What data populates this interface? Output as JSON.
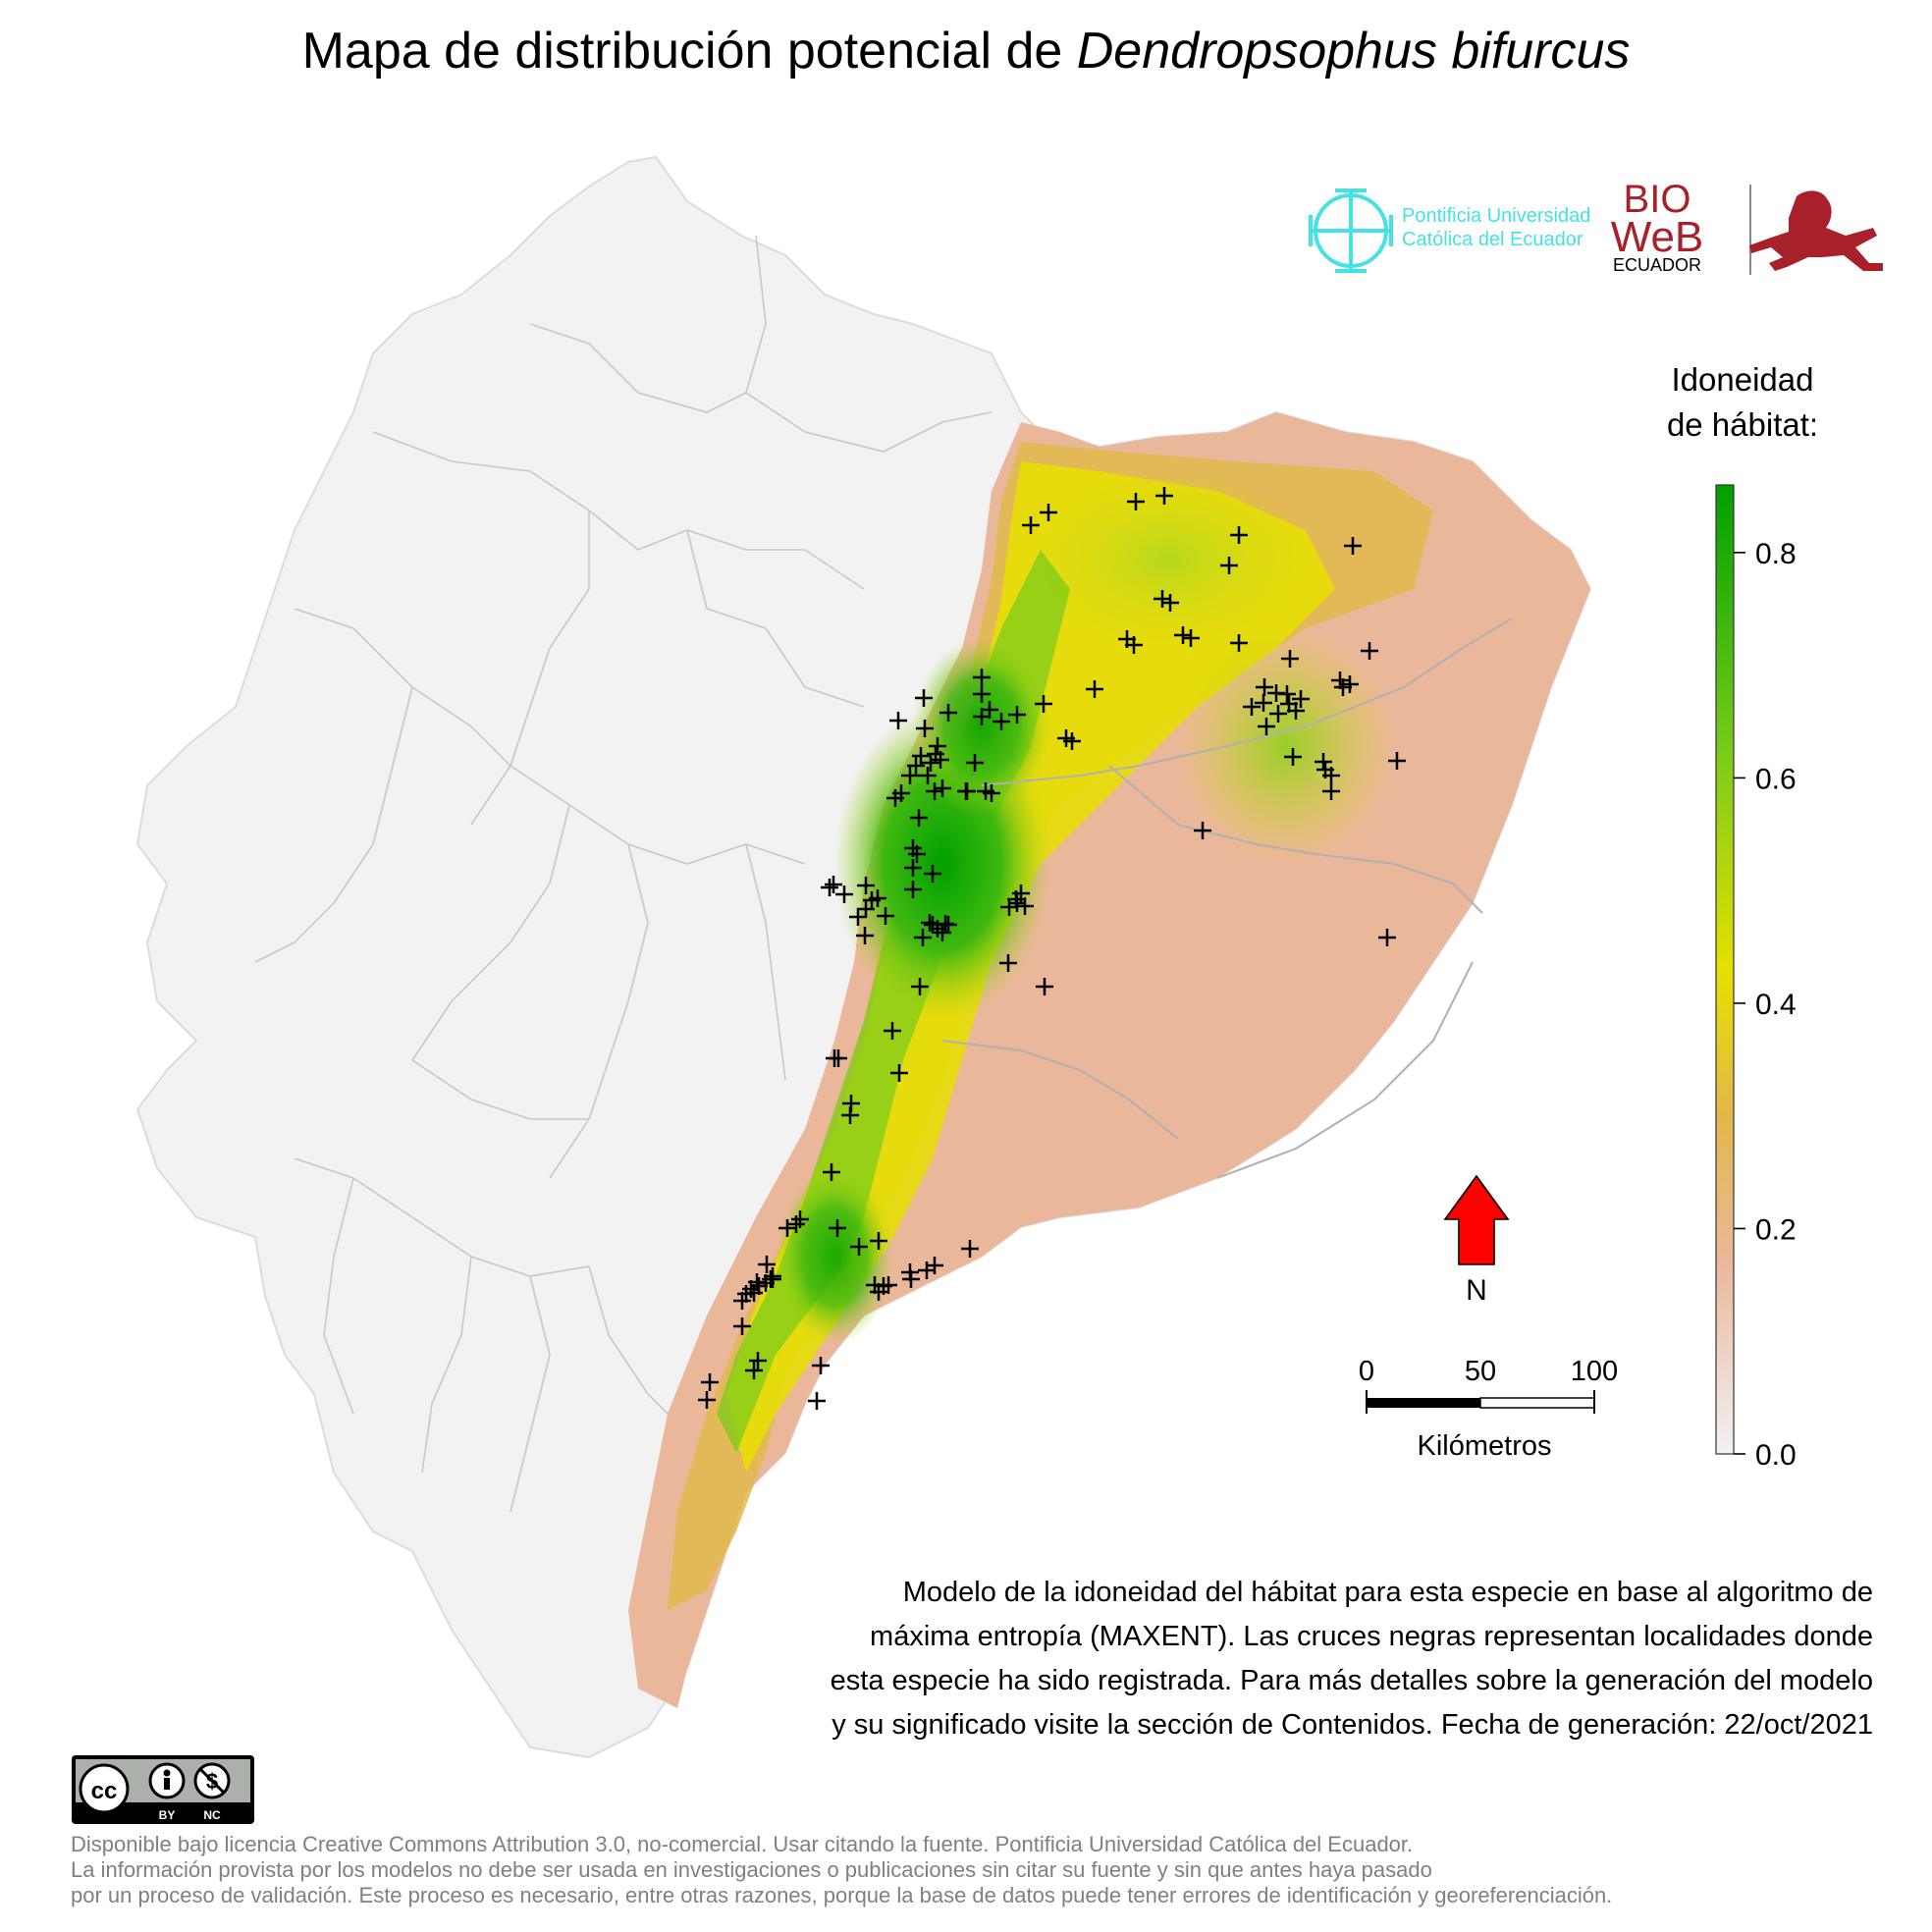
{
  "title": {
    "prefix": "Mapa de distribución potencial de ",
    "species": "Dendropsophus bifurcus"
  },
  "logos": {
    "pucp_line1": "Pontificia Universidad",
    "pucp_line2": "Católica del Ecuador",
    "bioweb_line1": "BIO",
    "bioweb_line2": "WeB",
    "bioweb_line3": "ECUADOR",
    "colors": {
      "pucp": "#44e2e2",
      "bioweb": "#a8202a"
    }
  },
  "legend": {
    "title_line1": "Idoneidad",
    "title_line2": "de hábitat:",
    "ticks": [
      "0.0",
      "0.2",
      "0.4",
      "0.6",
      "0.8"
    ],
    "tick_values": [
      0.0,
      0.2,
      0.4,
      0.6,
      0.8
    ],
    "max_value": 0.86,
    "colors": [
      "#f2f2f2",
      "#ebb79a",
      "#e2b84a",
      "#e6e000",
      "#7ccc1a",
      "#00a000"
    ]
  },
  "north_arrow": {
    "label": "N",
    "color": "#ff0000"
  },
  "scale_bar": {
    "ticks": [
      "0",
      "50",
      "100"
    ],
    "unit": "Kilómetros"
  },
  "caption": {
    "lines": [
      "Modelo de la idoneidad del hábitat para esta especie en base al algoritmo de",
      "máxima entropía (MAXENT). Las cruces negras representan localidades donde",
      "esta especie ha sido registrada. Para más detalles sobre la generación del modelo",
      "y su significado visite la sección de Contenidos. Fecha de generación: 22/oct/2021"
    ]
  },
  "license_badge": {
    "by": "BY",
    "nc": "NC"
  },
  "footer": {
    "lines": [
      "Disponible bajo licencia Creative Commons Attribution 3.0, no-comercial. Usar citando la fuente. Pontificia Universidad Católica del Ecuador.",
      "La información provista por los modelos no debe ser usada en investigaciones o publicaciones sin citar su fuente y sin que antes haya pasado",
      "por un proceso de validación. Este proceso es necesario, entre otras razones, porque la base de datos puede tener errores de identificación y georeferenciación."
    ]
  }
}
